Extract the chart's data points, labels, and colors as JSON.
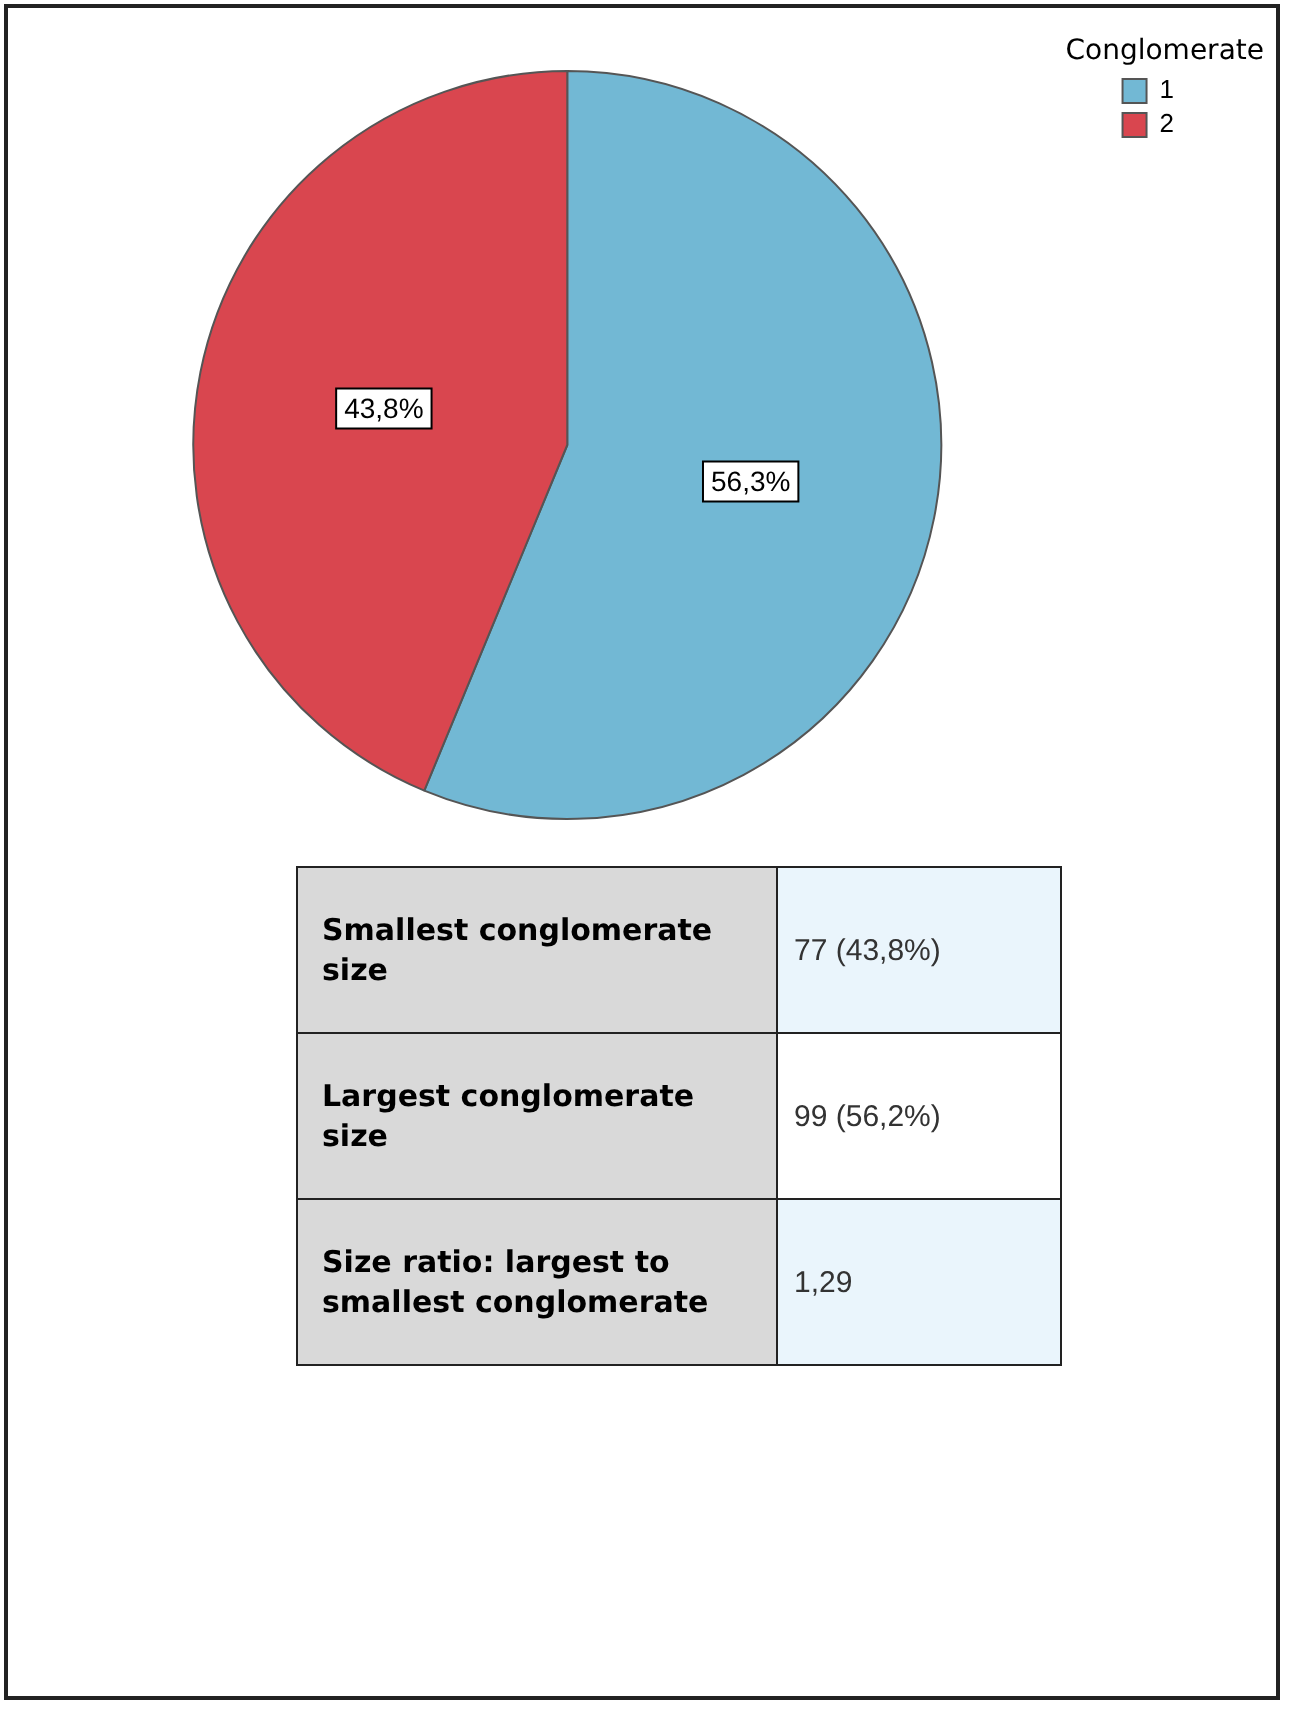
{
  "chart_data": {
    "type": "pie",
    "legend_title": "Conglomerate",
    "legend": "top right",
    "categories": [
      "1",
      "2"
    ],
    "values": [
      56.3,
      43.8
    ],
    "colors": [
      "#72b8d4",
      "#d9464f"
    ],
    "value_labels": [
      "56,3%",
      "43,8%"
    ],
    "annotations": [
      "Smallest conglomerate size",
      "77 (43,8%)",
      "Largest conglomerate size",
      "99 (56,2%)",
      "Size ratio: largest to smallest conglomerate",
      "1,29"
    ]
  }
}
